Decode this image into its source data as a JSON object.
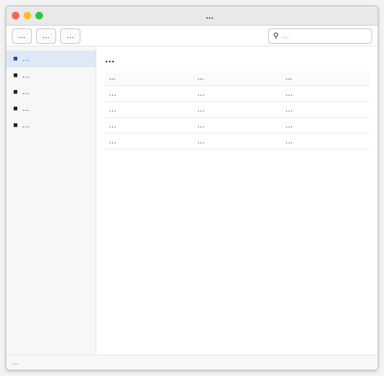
{
  "window": {
    "title": "…"
  },
  "toolbar": {
    "buttons": [
      "…",
      "…",
      "…"
    ],
    "search_placeholder": "…"
  },
  "sidebar": {
    "items": [
      {
        "label": "…"
      },
      {
        "label": "…"
      },
      {
        "label": "…"
      },
      {
        "label": "…"
      },
      {
        "label": "…"
      }
    ]
  },
  "main": {
    "heading": "…",
    "columns": [
      "…",
      "…",
      "…"
    ],
    "rows": [
      [
        "…",
        "…",
        "…"
      ],
      [
        "…",
        "…",
        "…"
      ],
      [
        "…",
        "…",
        "…"
      ],
      [
        "…",
        "…",
        "…"
      ]
    ]
  },
  "status": {
    "text": "…"
  },
  "colors": {
    "accent": "#1f4e9b"
  }
}
